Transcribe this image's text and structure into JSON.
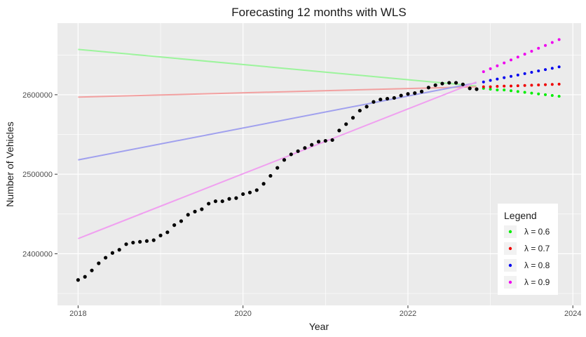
{
  "chart_data": {
    "type": "scatter",
    "title": "Forecasting 12 months with WLS",
    "xlabel": "Year",
    "ylabel": "Number of Vehicles",
    "xlim": [
      2017.75,
      2024.1
    ],
    "ylim": [
      2335000,
      2690000
    ],
    "x_ticks": [
      2018,
      2020,
      2022,
      2024
    ],
    "y_ticks": [
      2400000,
      2500000,
      2600000
    ],
    "grid": true,
    "legend": {
      "title": "Legend",
      "placement": "bottom-right"
    },
    "observed": {
      "color": "#000000",
      "x": [
        2018.0,
        2018.0833,
        2018.1667,
        2018.25,
        2018.3333,
        2018.4167,
        2018.5,
        2018.5833,
        2018.6667,
        2018.75,
        2018.8333,
        2018.9167,
        2019.0,
        2019.0833,
        2019.1667,
        2019.25,
        2019.3333,
        2019.4167,
        2019.5,
        2019.5833,
        2019.6667,
        2019.75,
        2019.8333,
        2019.9167,
        2020.0,
        2020.0833,
        2020.1667,
        2020.25,
        2020.3333,
        2020.4167,
        2020.5,
        2020.5833,
        2020.6667,
        2020.75,
        2020.8333,
        2020.9167,
        2021.0,
        2021.0833,
        2021.1667,
        2021.25,
        2021.3333,
        2021.4167,
        2021.5,
        2021.5833,
        2021.6667,
        2021.75,
        2021.8333,
        2021.9167,
        2022.0,
        2022.0833,
        2022.1667,
        2022.25,
        2022.3333,
        2022.4167,
        2022.5,
        2022.5833,
        2022.6667,
        2022.75,
        2022.8333
      ],
      "y": [
        2367000,
        2371000,
        2379000,
        2388000,
        2395000,
        2401000,
        2405000,
        2412000,
        2414000,
        2415000,
        2416000,
        2417000,
        2423000,
        2427000,
        2436000,
        2441000,
        2449000,
        2453000,
        2456000,
        2463000,
        2466000,
        2466000,
        2469000,
        2470000,
        2475000,
        2477000,
        2480000,
        2488000,
        2498000,
        2508000,
        2518000,
        2525000,
        2529000,
        2533000,
        2537000,
        2541000,
        2542000,
        2543000,
        2555000,
        2563000,
        2571000,
        2580000,
        2585000,
        2591000,
        2594000,
        2595000,
        2596000,
        2599000,
        2601000,
        2602000,
        2604000,
        2609000,
        2612000,
        2614000,
        2615000,
        2615000,
        2613000,
        2608000,
        2607000
      ]
    },
    "series": [
      {
        "name": "λ = 0.6",
        "color": "#00ee00",
        "fit_color": "#9cf49c",
        "fit_x": [
          2018.0,
          2022.83
        ],
        "fit_y": [
          2657000,
          2611000
        ],
        "forecast_x": [
          2022.9167,
          2023.0,
          2023.0833,
          2023.1667,
          2023.25,
          2023.3333,
          2023.4167,
          2023.5,
          2023.5833,
          2023.6667,
          2023.75,
          2023.8333
        ],
        "forecast_y": [
          2608000,
          2607000,
          2606000,
          2606000,
          2605000,
          2604000,
          2603000,
          2602000,
          2601000,
          2600000,
          2599000,
          2598000
        ]
      },
      {
        "name": "λ = 0.7",
        "color": "#ee0000",
        "fit_color": "#f2a0a0",
        "fit_x": [
          2018.0,
          2022.83
        ],
        "fit_y": [
          2597000,
          2610000
        ],
        "forecast_x": [
          2022.9167,
          2023.0,
          2023.0833,
          2023.1667,
          2023.25,
          2023.3333,
          2023.4167,
          2023.5,
          2023.5833,
          2023.6667,
          2023.75,
          2023.8333
        ],
        "forecast_y": [
          2610000,
          2610000,
          2610500,
          2610800,
          2611000,
          2611300,
          2611600,
          2612000,
          2612300,
          2612600,
          2613000,
          2613300
        ]
      },
      {
        "name": "λ = 0.8",
        "color": "#0000ee",
        "fit_color": "#a0a0ee",
        "fit_x": [
          2018.0,
          2022.83
        ],
        "fit_y": [
          2518000,
          2615000
        ],
        "forecast_x": [
          2022.9167,
          2023.0,
          2023.0833,
          2023.1667,
          2023.25,
          2023.3333,
          2023.4167,
          2023.5,
          2023.5833,
          2023.6667,
          2023.75,
          2023.8333
        ],
        "forecast_y": [
          2616000,
          2618000,
          2619700,
          2621400,
          2623100,
          2624800,
          2626500,
          2628200,
          2629900,
          2631600,
          2633300,
          2635000
        ]
      },
      {
        "name": "λ = 0.9",
        "color": "#ee00ee",
        "fit_color": "#f0a0f0",
        "fit_x": [
          2018.0,
          2022.83
        ],
        "fit_y": [
          2419000,
          2616000
        ],
        "forecast_x": [
          2022.9167,
          2023.0,
          2023.0833,
          2023.1667,
          2023.25,
          2023.3333,
          2023.4167,
          2023.5,
          2023.5833,
          2023.6667,
          2023.75,
          2023.8333
        ],
        "forecast_y": [
          2629000,
          2632700,
          2636400,
          2640000,
          2643700,
          2647400,
          2651000,
          2654700,
          2658400,
          2662000,
          2665700,
          2669400
        ]
      }
    ]
  }
}
